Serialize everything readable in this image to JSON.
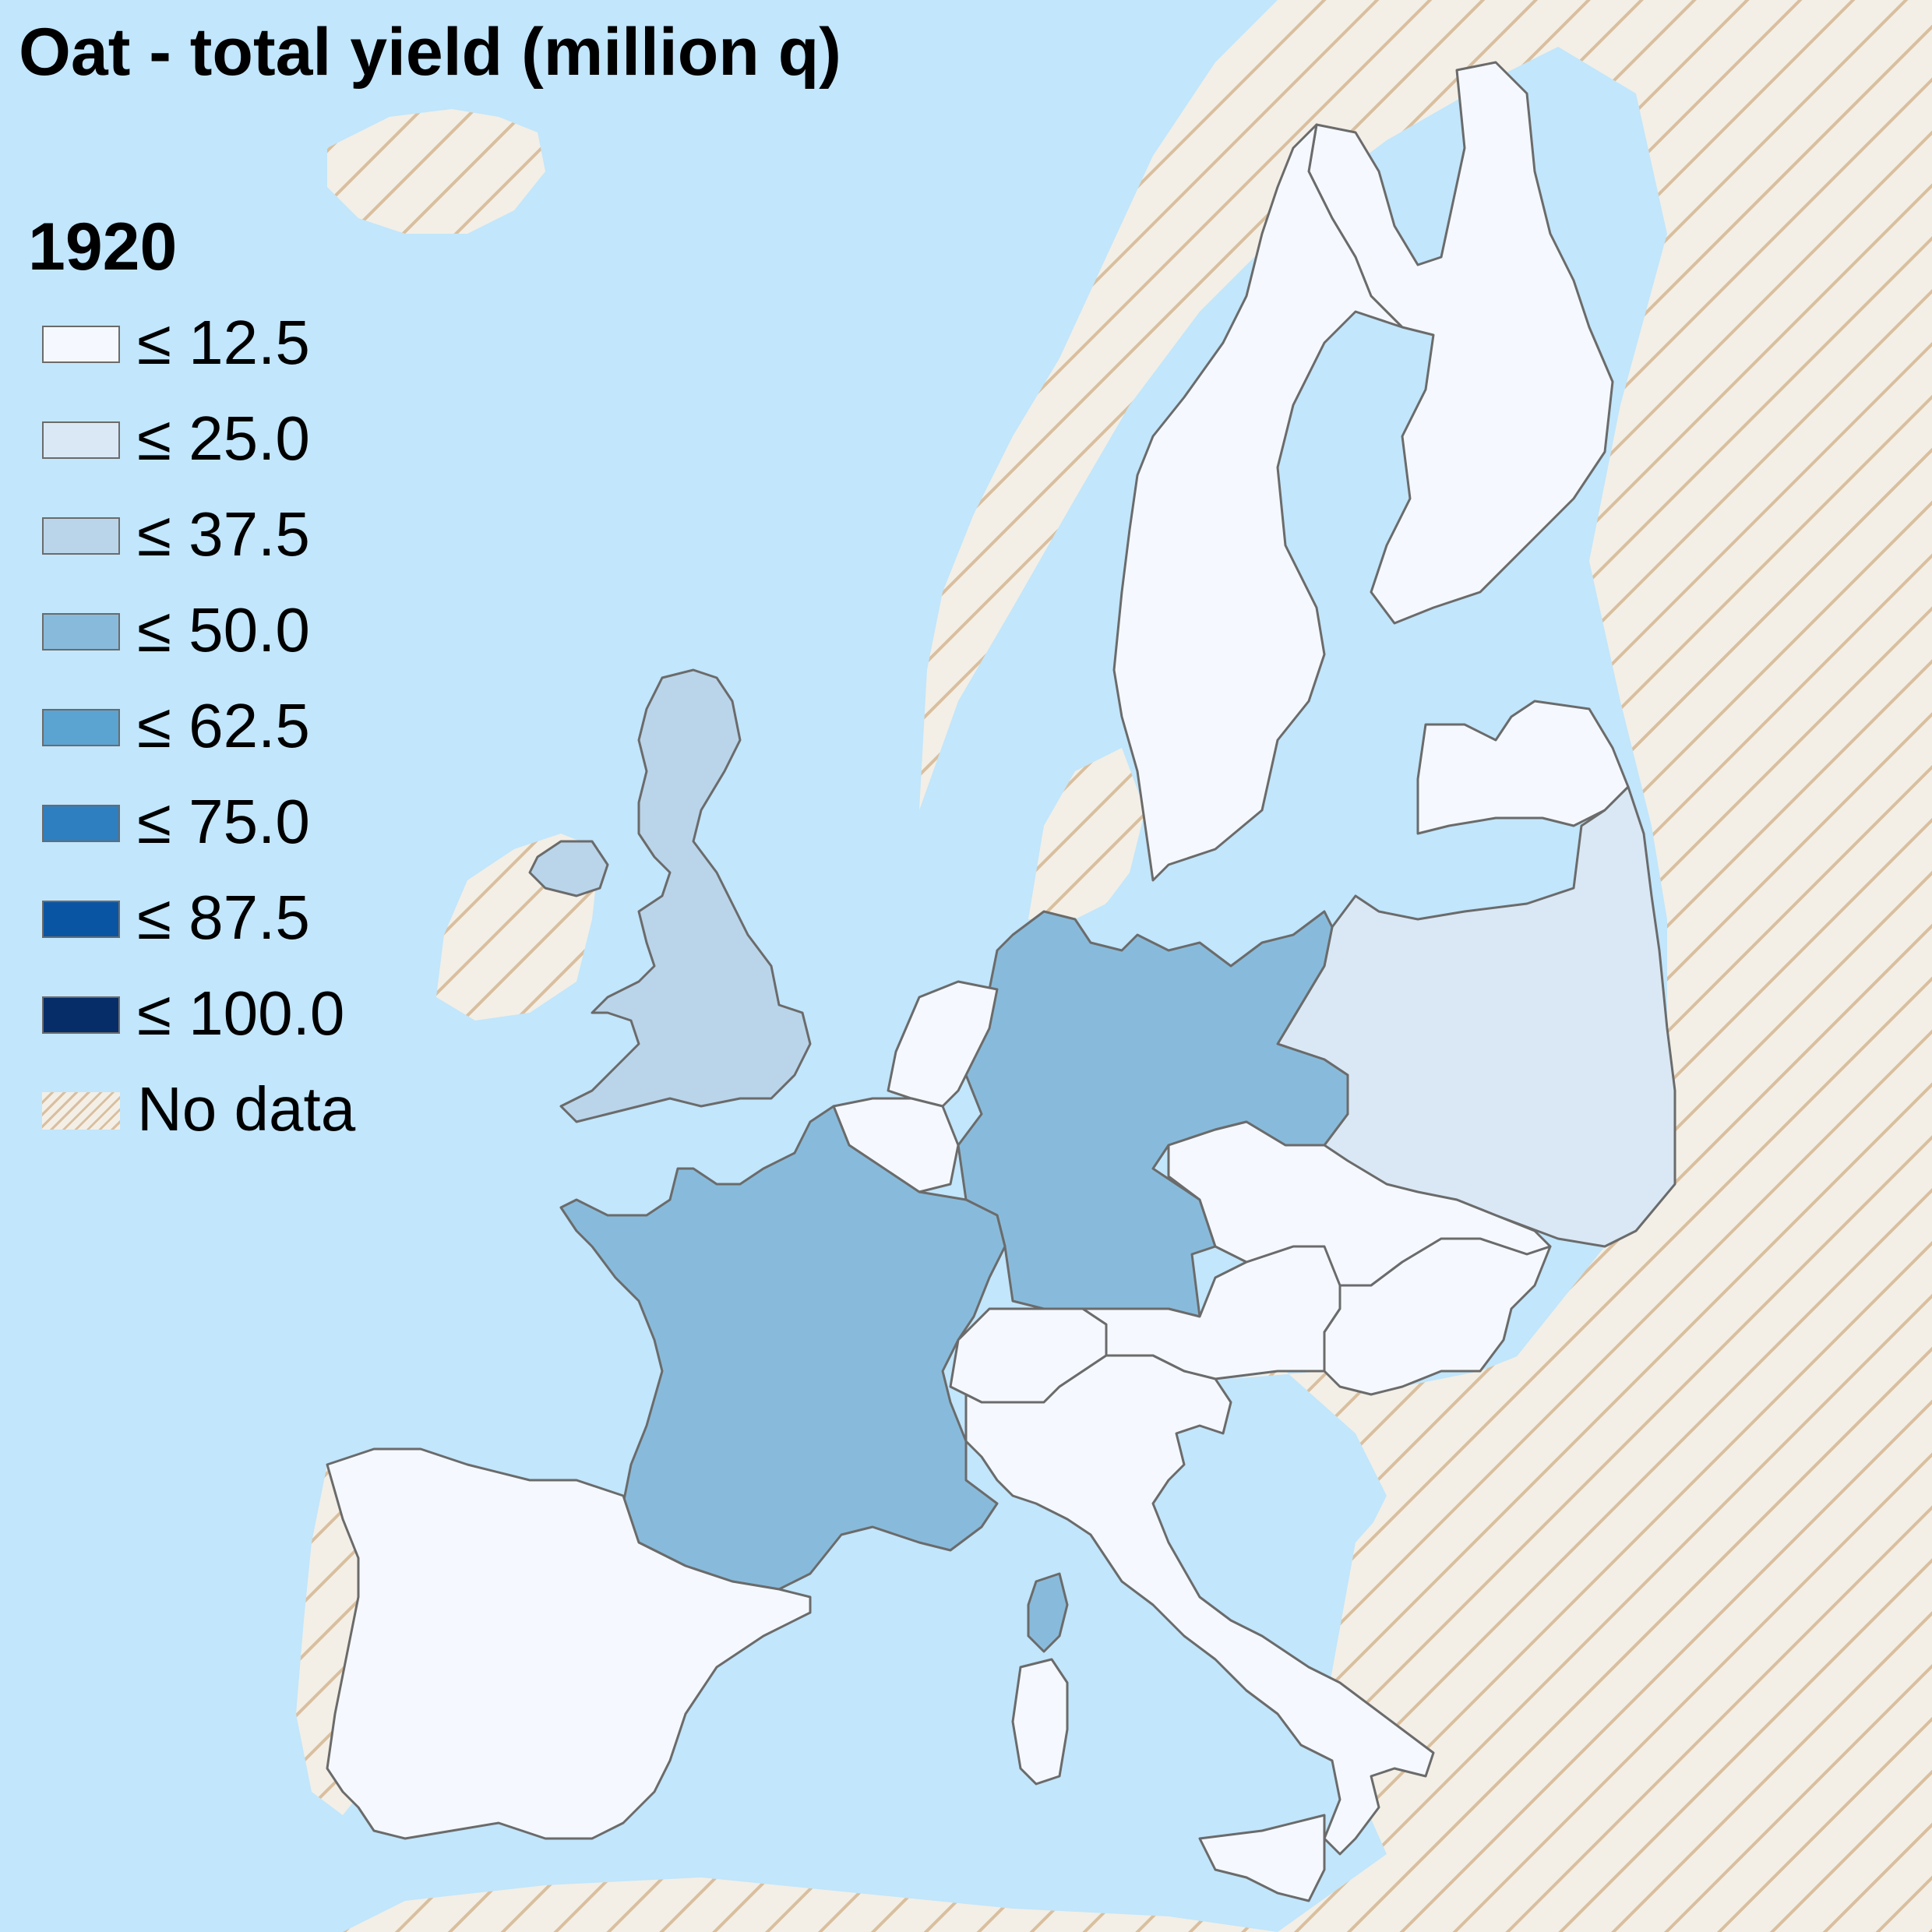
{
  "title": "Oat - total yield (million q)",
  "year": "1920",
  "colors": {
    "sea": "#c2e6fb",
    "nodata_fill": "#f3efe6",
    "nodata_hatch": "#d9bf9f",
    "border": "#6b6b6b"
  },
  "legend": [
    {
      "label": "≤ 12.5",
      "color": "#f5f9ff"
    },
    {
      "label": "≤ 25.0",
      "color": "#dae8f5"
    },
    {
      "label": "≤ 37.5",
      "color": "#bad5ea"
    },
    {
      "label": "≤ 50.0",
      "color": "#88bbdb"
    },
    {
      "label": "≤ 62.5",
      "color": "#5ba3d1"
    },
    {
      "label": "≤ 75.0",
      "color": "#2e7fc0"
    },
    {
      "label": "≤ 87.5",
      "color": "#0a55a3"
    },
    {
      "label": "≤ 100.0",
      "color": "#062d68"
    },
    {
      "label": "No data",
      "color": "hatched"
    }
  ],
  "countries": [
    {
      "name": "United Kingdom",
      "class": "≤ 37.5"
    },
    {
      "name": "France",
      "class": "≤ 50.0"
    },
    {
      "name": "Germany",
      "class": "≤ 50.0"
    },
    {
      "name": "Corsica",
      "class": "≤ 50.0"
    },
    {
      "name": "Poland",
      "class": "≤ 25.0"
    },
    {
      "name": "Sweden",
      "class": "≤ 12.5"
    },
    {
      "name": "Finland",
      "class": "≤ 12.5"
    },
    {
      "name": "Latvia",
      "class": "≤ 12.5"
    },
    {
      "name": "Netherlands",
      "class": "≤ 12.5"
    },
    {
      "name": "Belgium",
      "class": "≤ 12.5"
    },
    {
      "name": "Czechoslovakia",
      "class": "≤ 12.5"
    },
    {
      "name": "Austria",
      "class": "≤ 12.5"
    },
    {
      "name": "Hungary",
      "class": "≤ 12.5"
    },
    {
      "name": "Switzerland",
      "class": "≤ 12.5"
    },
    {
      "name": "Italy",
      "class": "≤ 12.5"
    },
    {
      "name": "Spain",
      "class": "≤ 12.5"
    }
  ]
}
